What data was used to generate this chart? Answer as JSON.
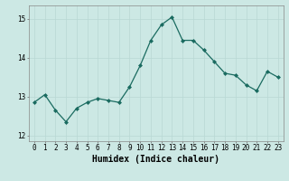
{
  "x": [
    0,
    1,
    2,
    3,
    4,
    5,
    6,
    7,
    8,
    9,
    10,
    11,
    12,
    13,
    14,
    15,
    16,
    17,
    18,
    19,
    20,
    21,
    22,
    23
  ],
  "y": [
    12.85,
    13.05,
    12.65,
    12.35,
    12.7,
    12.85,
    12.95,
    12.9,
    12.85,
    13.25,
    13.8,
    14.45,
    14.85,
    15.05,
    14.45,
    14.45,
    14.2,
    13.9,
    13.6,
    13.55,
    13.3,
    13.15,
    13.65,
    13.5
  ],
  "line_color": "#1a6b60",
  "marker": "D",
  "marker_size": 2.0,
  "line_width": 0.9,
  "bg_color": "#cce8e4",
  "grid_color": "#b8d8d4",
  "xlabel": "Humidex (Indice chaleur)",
  "ylim": [
    11.85,
    15.35
  ],
  "xlim": [
    -0.5,
    23.5
  ],
  "yticks": [
    12,
    13,
    14,
    15
  ],
  "xticks": [
    0,
    1,
    2,
    3,
    4,
    5,
    6,
    7,
    8,
    9,
    10,
    11,
    12,
    13,
    14,
    15,
    16,
    17,
    18,
    19,
    20,
    21,
    22,
    23
  ],
  "tick_label_size": 5.5,
  "xlabel_size": 7.0
}
